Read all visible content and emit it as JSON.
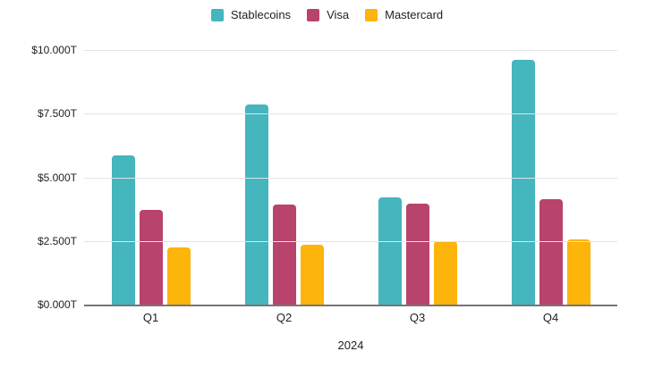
{
  "chart_data": {
    "type": "bar",
    "title": "",
    "xlabel": "2024",
    "ylabel": "",
    "categories": [
      "Q1",
      "Q2",
      "Q3",
      "Q4"
    ],
    "series": [
      {
        "name": "Stablecoins",
        "color": "#45b5be",
        "values": [
          5.85,
          7.85,
          4.2,
          9.6
        ]
      },
      {
        "name": "Visa",
        "color": "#b8436c",
        "values": [
          3.73,
          3.93,
          3.97,
          4.15
        ]
      },
      {
        "name": "Mastercard",
        "color": "#fdb40b",
        "values": [
          2.25,
          2.35,
          2.5,
          2.55
        ]
      }
    ],
    "ylim": [
      0,
      10
    ],
    "yticks": [
      {
        "label": "$0.000T",
        "value": 0
      },
      {
        "label": "$2.500T",
        "value": 2.5
      },
      {
        "label": "$5.000T",
        "value": 5
      },
      {
        "label": "$7.500T",
        "value": 7.5
      },
      {
        "label": "$10.000T",
        "value": 10
      }
    ],
    "grid": true,
    "legend_position": "top"
  },
  "colors": {
    "background": "#ffffff",
    "gridline": "#e3e3e3",
    "axis_line": "#757575",
    "text": "#222222"
  }
}
